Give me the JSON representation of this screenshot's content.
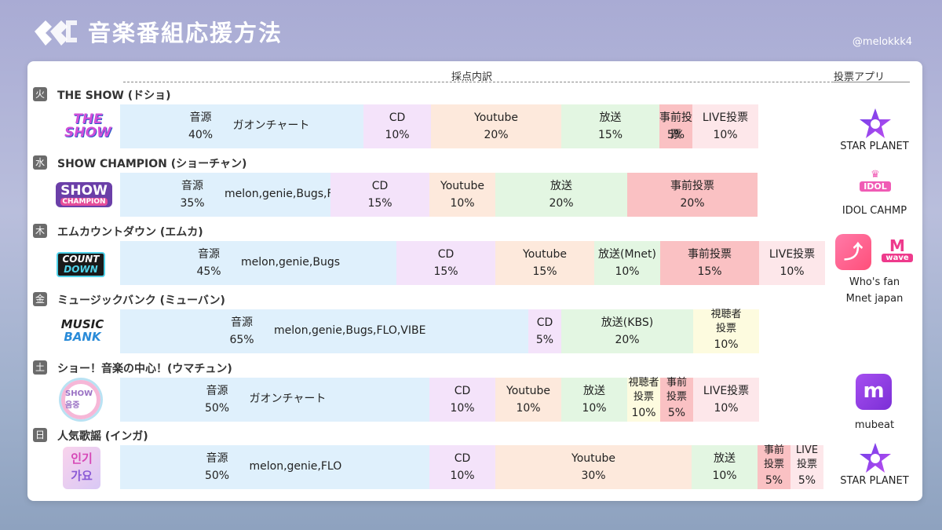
{
  "header": {
    "title": "音楽番組応援方法",
    "credit": "@melokkk4"
  },
  "columns": {
    "breakdown": "採点内訳",
    "vote_app": "投票アプリ"
  },
  "shows": [
    {
      "day": "火",
      "name": "THE SHOW (ドショ)",
      "segments": [
        {
          "lbl": "音源",
          "pct": "40%",
          "sub": "ガオンチャート"
        },
        {
          "lbl": "CD",
          "pct": "10%"
        },
        {
          "lbl": "Youtube",
          "pct": "20%"
        },
        {
          "lbl": "放送",
          "pct": "15%"
        },
        {
          "lbl": "事前投票",
          "pct": "5%"
        },
        {
          "lbl": "LIVE投票",
          "pct": "10%"
        }
      ]
    },
    {
      "day": "水",
      "name": "SHOW CHAMPION (ショーチャン)",
      "segments": [
        {
          "lbl": "音源",
          "pct": "35%",
          "sub": "melon,genie,Bugs,FLO"
        },
        {
          "lbl": "CD",
          "pct": "15%"
        },
        {
          "lbl": "Youtube",
          "pct": "10%"
        },
        {
          "lbl": "放送",
          "pct": "20%"
        },
        {
          "lbl": "事前投票",
          "pct": "20%"
        }
      ]
    },
    {
      "day": "木",
      "name": "エムカウントダウン (エムカ)",
      "segments": [
        {
          "lbl": "音源",
          "pct": "45%",
          "sub": "melon,genie,Bugs"
        },
        {
          "lbl": "CD",
          "pct": "15%"
        },
        {
          "lbl": "Youtube",
          "pct": "15%"
        },
        {
          "lbl": "放送(Mnet)",
          "pct": "10%"
        },
        {
          "lbl": "事前投票",
          "pct": "15%"
        },
        {
          "lbl": "LIVE投票",
          "pct": "10%"
        }
      ]
    },
    {
      "day": "金",
      "name": "ミュージックバンク (ミューバン)",
      "segments": [
        {
          "lbl": "音源",
          "pct": "65%",
          "sub": "melon,genie,Bugs,FLO,VIBE"
        },
        {
          "lbl": "CD",
          "pct": "5%"
        },
        {
          "lbl": "放送(KBS)",
          "pct": "20%"
        },
        {
          "lbl": "視聴者投票",
          "lbl1": "視聴者",
          "lbl2": "投票",
          "pct": "10%"
        }
      ]
    },
    {
      "day": "土",
      "name": "ショー！音楽の中心！(ウマチュン)",
      "segments": [
        {
          "lbl": "音源",
          "pct": "50%",
          "sub": "ガオンチャート"
        },
        {
          "lbl": "CD",
          "pct": "10%"
        },
        {
          "lbl": "Youtube",
          "pct": "10%"
        },
        {
          "lbl": "放送",
          "pct": "10%"
        },
        {
          "lbl": "視聴者投票",
          "lbl1": "視聴者",
          "lbl2": "投票",
          "pct": "10%"
        },
        {
          "lbl": "事前投票",
          "lbl1": "事前",
          "lbl2": "投票",
          "pct": "5%"
        },
        {
          "lbl": "LIVE投票",
          "pct": "10%"
        }
      ]
    },
    {
      "day": "日",
      "name": "人気歌謡 (インガ)",
      "segments": [
        {
          "lbl": "音源",
          "pct": "50%",
          "sub": "melon,genie,FLO"
        },
        {
          "lbl": "CD",
          "pct": "10%"
        },
        {
          "lbl": "Youtube",
          "pct": "30%"
        },
        {
          "lbl": "放送",
          "pct": "10%"
        },
        {
          "lbl": "事前投票",
          "lbl1": "事前",
          "lbl2": "投票",
          "pct": "5%"
        },
        {
          "lbl": "LIVE投票",
          "lbl1": "LIVE",
          "lbl2": "投票",
          "pct": "5%"
        }
      ]
    }
  ],
  "apps": {
    "tue": "STAR PLANET",
    "wed": "IDOL CAHMP",
    "thu_1": "Who's fan",
    "thu_2": "Mnet japan",
    "sat": "mubeat",
    "sun": "STAR PLANET",
    "idol_logo_text": "IDOL",
    "mwave_m": "M",
    "mwave_text": "wave"
  },
  "logos": {
    "the_show_1": "THE",
    "the_show_2": "SHOW",
    "show_champion_1": "SHOW",
    "show_champion_2": "CHAMPION",
    "mcountdown_1": "COUNT",
    "mcountdown_2": "DOWN",
    "music_bank_1": "MUSIC",
    "music_bank_2": "BANK",
    "music_core": "SHOW 음중",
    "inkigayo_1": "인기",
    "inkigayo_2": "가요"
  },
  "colors": {
    "source": "#dff0fc",
    "cd": "#f4e3fa",
    "youtube": "#fde9dc",
    "broadcast": "#e3f6e2",
    "pre_vote": "#fac1c3",
    "live_vote": "#fde7ea",
    "viewer_vote": "#fdfbdf"
  }
}
